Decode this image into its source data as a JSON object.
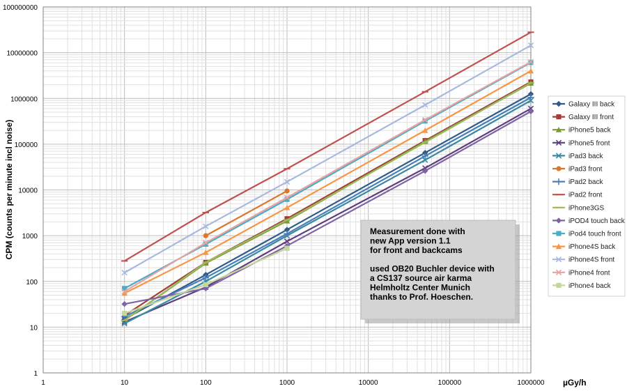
{
  "chart_data": {
    "type": "line",
    "xscale": "log",
    "yscale": "log",
    "xlim": [
      1,
      1000000
    ],
    "ylim": [
      1,
      100000000
    ],
    "grid": true,
    "legend_position": "right",
    "xlabel": "µGy/h",
    "ylabel": "CPM (counts per minute incl noise)",
    "x_tick_labels": [
      "1",
      "10",
      "100",
      "1000",
      "10000",
      "100000",
      "1000000"
    ],
    "y_tick_labels": [
      "1",
      "10",
      "100",
      "1000",
      "10000",
      "100000",
      "1000000",
      "10000000",
      "100000000"
    ],
    "annotation": [
      "Measurement done with",
      "new App version 1.1",
      "for front and backcams",
      "",
      "used OB20 Buchler device with",
      "a CS137 source air karma",
      "Helmholtz Center Munich",
      "thanks to Prof. Hoeschen."
    ],
    "series": [
      {
        "name": "Galaxy III back",
        "color": "#2e5c8a",
        "marker": "diamond",
        "x": [
          10,
          100,
          1000,
          50000,
          1000000
        ],
        "y": [
          15,
          140,
          1350,
          65000,
          1250000
        ]
      },
      {
        "name": "Galaxy III front",
        "color": "#a33b38",
        "marker": "square",
        "x": [
          10,
          100,
          1000,
          50000,
          1000000
        ],
        "y": [
          18,
          260,
          2350,
          120000,
          2300000
        ]
      },
      {
        "name": "iPhone5 back",
        "color": "#7a9a3a",
        "marker": "triangle",
        "x": [
          10,
          100,
          1000,
          50000,
          1000000
        ],
        "y": [
          14,
          250,
          2100,
          115000,
          2150000
        ]
      },
      {
        "name": "iPhone5 front",
        "color": "#5c3d7e",
        "marker": "x",
        "x": [
          10,
          100,
          1000,
          50000,
          1000000
        ],
        "y": [
          13,
          75,
          750,
          30000,
          600000
        ]
      },
      {
        "name": "iPad3 back",
        "color": "#3a8aa0",
        "marker": "x",
        "x": [
          10,
          100,
          1000,
          50000,
          1000000
        ],
        "y": [
          12,
          100,
          1000,
          45000,
          900000
        ]
      },
      {
        "name": "iPad3 front",
        "color": "#d9772e",
        "marker": "circle",
        "x": [
          100,
          1000
        ],
        "y": [
          1000,
          9500
        ]
      },
      {
        "name": "iPad2 back",
        "color": "#4a7ebb",
        "marker": "plus",
        "x": [
          10,
          100,
          1000,
          50000,
          1000000
        ],
        "y": [
          17,
          120,
          1100,
          55000,
          1050000
        ]
      },
      {
        "name": "iPad2 front",
        "color": "#c0504d",
        "marker": "dash",
        "x": [
          10,
          100,
          1000,
          50000,
          1000000
        ],
        "y": [
          280,
          3200,
          29000,
          1400000,
          28000000
        ]
      },
      {
        "name": "iPhone3GS",
        "color": "#9bbb59",
        "marker": "dash",
        "x": [
          10,
          100,
          1000,
          50000,
          1000000
        ],
        "y": [
          14,
          260,
          2200,
          110000,
          2200000
        ]
      },
      {
        "name": "iPOD4 touch back",
        "color": "#8064a2",
        "marker": "diamond",
        "x": [
          10,
          100,
          1000,
          50000,
          1000000
        ],
        "y": [
          32,
          70,
          600,
          26000,
          520000
        ]
      },
      {
        "name": "iPod4 touch front",
        "color": "#4bacc6",
        "marker": "square",
        "x": [
          10,
          100,
          1000,
          50000,
          1000000
        ],
        "y": [
          70,
          650,
          6200,
          320000,
          6100000
        ]
      },
      {
        "name": "iPhone4S back",
        "color": "#f79646",
        "marker": "triangle",
        "x": [
          10,
          100,
          1000,
          50000,
          1000000
        ],
        "y": [
          55,
          430,
          4100,
          200000,
          4000000
        ]
      },
      {
        "name": "iPhone4S front",
        "color": "#a7b9e0",
        "marker": "x",
        "x": [
          10,
          100,
          1000,
          50000,
          1000000
        ],
        "y": [
          155,
          1600,
          15000,
          720000,
          14500000
        ]
      },
      {
        "name": "iPhone4 front",
        "color": "#e6a3a1",
        "marker": "x",
        "x": [
          10,
          100,
          1000,
          50000,
          1000000
        ],
        "y": [
          60,
          700,
          6800,
          340000,
          6300000
        ]
      },
      {
        "name": "iPhone4 back",
        "color": "#c3d69b",
        "marker": "square",
        "x": [
          10,
          100,
          1000
        ],
        "y": [
          20,
          85,
          530
        ]
      }
    ]
  }
}
